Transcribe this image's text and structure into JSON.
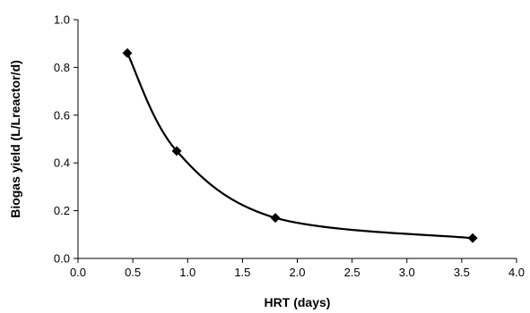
{
  "chart_data": {
    "type": "scatter",
    "title": "",
    "xlabel": "HRT (days)",
    "ylabel": "Biogas yield (L/Lreactor/d)",
    "xlim": [
      0.0,
      4.0
    ],
    "ylim": [
      0.0,
      1.0
    ],
    "xticks": [
      "0.0",
      "0.5",
      "1.0",
      "1.5",
      "2.0",
      "2.5",
      "3.0",
      "3.5",
      "4.0"
    ],
    "yticks": [
      "0.0",
      "0.2",
      "0.4",
      "0.6",
      "0.8",
      "1.0"
    ],
    "grid": false,
    "legend": "none",
    "marker": "diamond",
    "line": "smoothed",
    "color": "#000000",
    "series": [
      {
        "x": [
          0.45,
          0.9,
          1.8,
          3.6
        ],
        "y": [
          0.86,
          0.45,
          0.17,
          0.085
        ]
      }
    ]
  }
}
